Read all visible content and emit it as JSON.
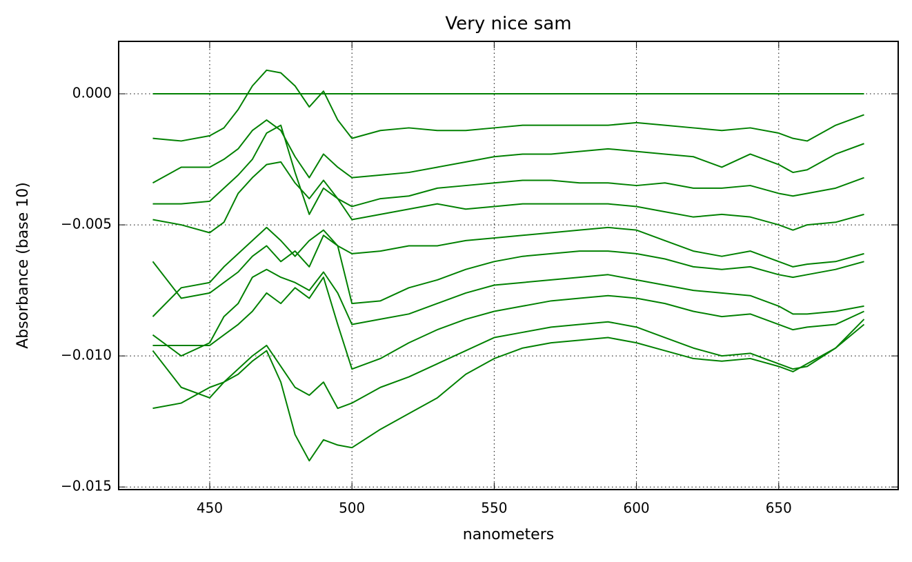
{
  "chart_data": {
    "type": "line",
    "title": "Very nice sam",
    "x_label": "nanometers",
    "y_label": "Absorbance (base 10)",
    "color": "#008000",
    "grid": true,
    "xlim": [
      418,
      692
    ],
    "ylim": [
      -0.0151,
      0.002
    ],
    "xticks": [
      450,
      500,
      550,
      600,
      650
    ],
    "yticks": [
      {
        "value": 0,
        "label": "0.000"
      },
      {
        "value": -0.005,
        "label": "−0.005"
      },
      {
        "value": -0.01,
        "label": "−0.010"
      },
      {
        "value": -0.015,
        "label": "−0.015"
      }
    ],
    "x": [
      430,
      440,
      450,
      455,
      460,
      465,
      470,
      475,
      480,
      485,
      490,
      495,
      500,
      510,
      520,
      530,
      540,
      550,
      560,
      570,
      580,
      590,
      600,
      610,
      620,
      630,
      640,
      650,
      655,
      660,
      670,
      680
    ],
    "series": [
      {
        "values": [
          0,
          0,
          0,
          0,
          0,
          0,
          0,
          0,
          0,
          0,
          0,
          0,
          0,
          0,
          0,
          0,
          0,
          0,
          0,
          0,
          0,
          0,
          0,
          0,
          0,
          0,
          0,
          0,
          0,
          0,
          0,
          0
        ]
      },
      {
        "values": [
          -0.0017,
          -0.0018,
          -0.0016,
          -0.0013,
          -0.0006,
          0.0003,
          0.0009,
          0.0008,
          0.0003,
          -0.0005,
          0.0001,
          -0.001,
          -0.0017,
          -0.0014,
          -0.0013,
          -0.0014,
          -0.0014,
          -0.0013,
          -0.0012,
          -0.0012,
          -0.0012,
          -0.0012,
          -0.0011,
          -0.0012,
          -0.0013,
          -0.0014,
          -0.0013,
          -0.0015,
          -0.0017,
          -0.0018,
          -0.0012,
          -0.0008
        ]
      },
      {
        "values": [
          -0.0034,
          -0.0028,
          -0.0028,
          -0.0025,
          -0.0021,
          -0.0014,
          -0.001,
          -0.0014,
          -0.0024,
          -0.0032,
          -0.0023,
          -0.0028,
          -0.0032,
          -0.0031,
          -0.003,
          -0.0028,
          -0.0026,
          -0.0024,
          -0.0023,
          -0.0023,
          -0.0022,
          -0.0021,
          -0.0022,
          -0.0023,
          -0.0024,
          -0.0028,
          -0.0023,
          -0.0027,
          -0.003,
          -0.0029,
          -0.0023,
          -0.0019
        ]
      },
      {
        "values": [
          -0.0042,
          -0.0042,
          -0.0041,
          -0.0036,
          -0.0031,
          -0.0025,
          -0.0015,
          -0.0012,
          -0.003,
          -0.0046,
          -0.0036,
          -0.004,
          -0.0043,
          -0.004,
          -0.0039,
          -0.0036,
          -0.0035,
          -0.0034,
          -0.0033,
          -0.0033,
          -0.0034,
          -0.0034,
          -0.0035,
          -0.0034,
          -0.0036,
          -0.0036,
          -0.0035,
          -0.0038,
          -0.0039,
          -0.0038,
          -0.0036,
          -0.0032
        ]
      },
      {
        "values": [
          -0.0048,
          -0.005,
          -0.0053,
          -0.0049,
          -0.0038,
          -0.0032,
          -0.0027,
          -0.0026,
          -0.0034,
          -0.004,
          -0.0033,
          -0.004,
          -0.0048,
          -0.0046,
          -0.0044,
          -0.0042,
          -0.0044,
          -0.0043,
          -0.0042,
          -0.0042,
          -0.0042,
          -0.0042,
          -0.0043,
          -0.0045,
          -0.0047,
          -0.0046,
          -0.0047,
          -0.005,
          -0.0052,
          -0.005,
          -0.0049,
          -0.0046
        ]
      },
      {
        "values": [
          -0.0064,
          -0.0078,
          -0.0076,
          -0.0072,
          -0.0068,
          -0.0062,
          -0.0058,
          -0.0064,
          -0.006,
          -0.0066,
          -0.0054,
          -0.0058,
          -0.0061,
          -0.006,
          -0.0058,
          -0.0058,
          -0.0056,
          -0.0055,
          -0.0054,
          -0.0053,
          -0.0052,
          -0.0051,
          -0.0052,
          -0.0056,
          -0.006,
          -0.0062,
          -0.006,
          -0.0064,
          -0.0066,
          -0.0065,
          -0.0064,
          -0.0061
        ]
      },
      {
        "values": [
          -0.0085,
          -0.0074,
          -0.0072,
          -0.0066,
          -0.0061,
          -0.0056,
          -0.0051,
          -0.0056,
          -0.0062,
          -0.0056,
          -0.0052,
          -0.0058,
          -0.008,
          -0.0079,
          -0.0074,
          -0.0071,
          -0.0067,
          -0.0064,
          -0.0062,
          -0.0061,
          -0.006,
          -0.006,
          -0.0061,
          -0.0063,
          -0.0066,
          -0.0067,
          -0.0066,
          -0.0069,
          -0.007,
          -0.0069,
          -0.0067,
          -0.0064
        ]
      },
      {
        "values": [
          -0.0092,
          -0.01,
          -0.0095,
          -0.0085,
          -0.008,
          -0.007,
          -0.0067,
          -0.007,
          -0.0072,
          -0.0075,
          -0.0068,
          -0.0076,
          -0.0088,
          -0.0086,
          -0.0084,
          -0.008,
          -0.0076,
          -0.0073,
          -0.0072,
          -0.0071,
          -0.007,
          -0.0069,
          -0.0071,
          -0.0073,
          -0.0075,
          -0.0076,
          -0.0077,
          -0.0081,
          -0.0084,
          -0.0084,
          -0.0083,
          -0.0081
        ]
      },
      {
        "values": [
          -0.0096,
          -0.0096,
          -0.0096,
          -0.0092,
          -0.0088,
          -0.0083,
          -0.0076,
          -0.008,
          -0.0074,
          -0.0078,
          -0.007,
          -0.0088,
          -0.0105,
          -0.0101,
          -0.0095,
          -0.009,
          -0.0086,
          -0.0083,
          -0.0081,
          -0.0079,
          -0.0078,
          -0.0077,
          -0.0078,
          -0.008,
          -0.0083,
          -0.0085,
          -0.0084,
          -0.0088,
          -0.009,
          -0.0089,
          -0.0088,
          -0.0083
        ]
      },
      {
        "values": [
          -0.0098,
          -0.0112,
          -0.0116,
          -0.011,
          -0.0105,
          -0.01,
          -0.0096,
          -0.0104,
          -0.0112,
          -0.0115,
          -0.011,
          -0.012,
          -0.0118,
          -0.0112,
          -0.0108,
          -0.0103,
          -0.0098,
          -0.0093,
          -0.0091,
          -0.0089,
          -0.0088,
          -0.0087,
          -0.0089,
          -0.0093,
          -0.0097,
          -0.01,
          -0.0099,
          -0.0103,
          -0.0105,
          -0.0104,
          -0.0097,
          -0.0086
        ]
      },
      {
        "values": [
          -0.012,
          -0.0118,
          -0.0112,
          -0.011,
          -0.0107,
          -0.0102,
          -0.0098,
          -0.011,
          -0.013,
          -0.014,
          -0.0132,
          -0.0134,
          -0.0135,
          -0.0128,
          -0.0122,
          -0.0116,
          -0.0107,
          -0.0101,
          -0.0097,
          -0.0095,
          -0.0094,
          -0.0093,
          -0.0095,
          -0.0098,
          -0.0101,
          -0.0102,
          -0.0101,
          -0.0104,
          -0.0106,
          -0.0103,
          -0.0097,
          -0.0088
        ]
      }
    ]
  }
}
